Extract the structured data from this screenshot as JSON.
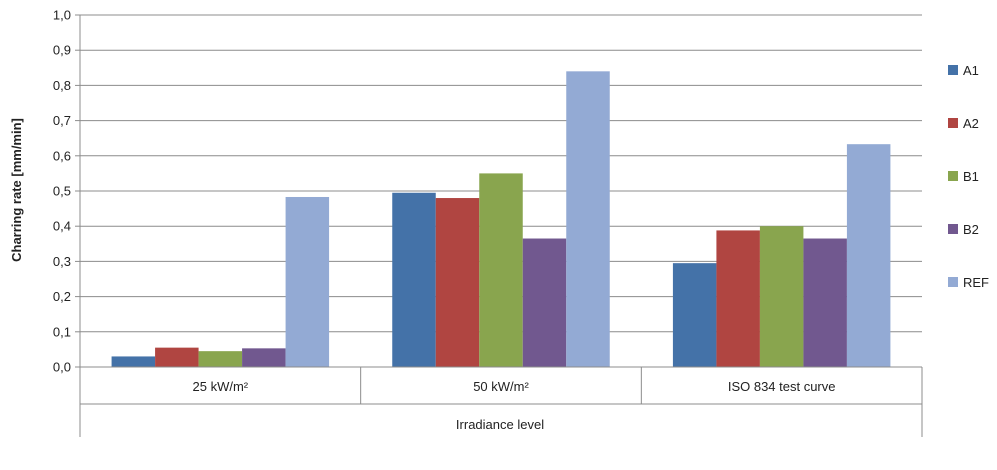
{
  "chart_data": {
    "type": "bar",
    "title": "",
    "xlabel": "Irradiance level",
    "ylabel": "Charring rate [mm/min]",
    "ylim": [
      0,
      1.0
    ],
    "ytick_step": 0.1,
    "ytick_labels": [
      "0,0",
      "0,1",
      "0,2",
      "0,3",
      "0,4",
      "0,5",
      "0,6",
      "0,7",
      "0,8",
      "0,9",
      "1,0"
    ],
    "categories": [
      "25 kW/m²",
      "50 kW/m²",
      "ISO 834 test curve"
    ],
    "grid": true,
    "legend_position": "right",
    "series": [
      {
        "name": "A1",
        "color": "#4472a8",
        "values": [
          0.03,
          0.495,
          0.295
        ]
      },
      {
        "name": "A2",
        "color": "#b04541",
        "values": [
          0.055,
          0.48,
          0.388
        ]
      },
      {
        "name": "B1",
        "color": "#89a54e",
        "values": [
          0.045,
          0.55,
          0.4
        ]
      },
      {
        "name": "B2",
        "color": "#71588f",
        "values": [
          0.053,
          0.365,
          0.365
        ]
      },
      {
        "name": "REF",
        "color": "#93aad4",
        "values": [
          0.483,
          0.84,
          0.633
        ]
      }
    ]
  }
}
